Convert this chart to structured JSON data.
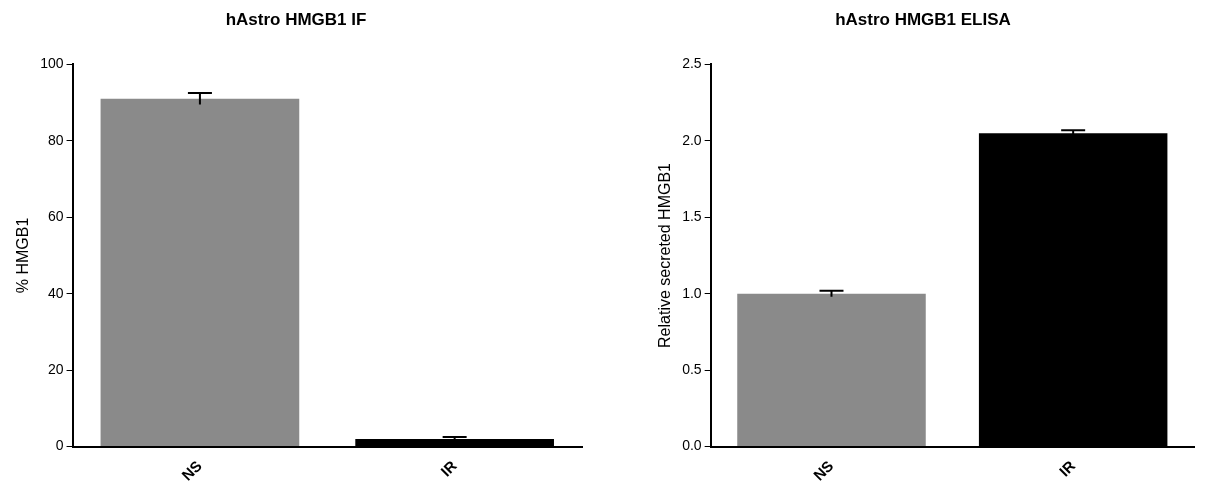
{
  "chart_data": [
    {
      "type": "bar",
      "title": "hAstro HMGB1 IF",
      "ylabel": "% HMGB1",
      "categories": [
        "NS",
        "IR"
      ],
      "values": [
        91,
        2
      ],
      "errors": [
        1.5,
        0.5
      ],
      "colors": [
        "#8a8a8a",
        "#000000"
      ],
      "ylim": [
        0,
        100
      ],
      "yticks": [
        0,
        20,
        40,
        60,
        80,
        100
      ],
      "grid": false,
      "legend": false
    },
    {
      "type": "bar",
      "title": "hAstro HMGB1 ELISA",
      "ylabel": "Relative secreted HMGB1",
      "categories": [
        "NS",
        "IR"
      ],
      "values": [
        1.0,
        2.05
      ],
      "errors": [
        0.02,
        0.02
      ],
      "colors": [
        "#8a8a8a",
        "#000000"
      ],
      "ylim": [
        0,
        2.5
      ],
      "yticks": [
        {
          "value": 0,
          "label": "0.0"
        },
        0.5,
        {
          "value": 1,
          "label": "1.0"
        },
        1.5,
        {
          "value": 2,
          "label": "2.0"
        },
        2.5
      ],
      "grid": false,
      "legend": false
    }
  ]
}
